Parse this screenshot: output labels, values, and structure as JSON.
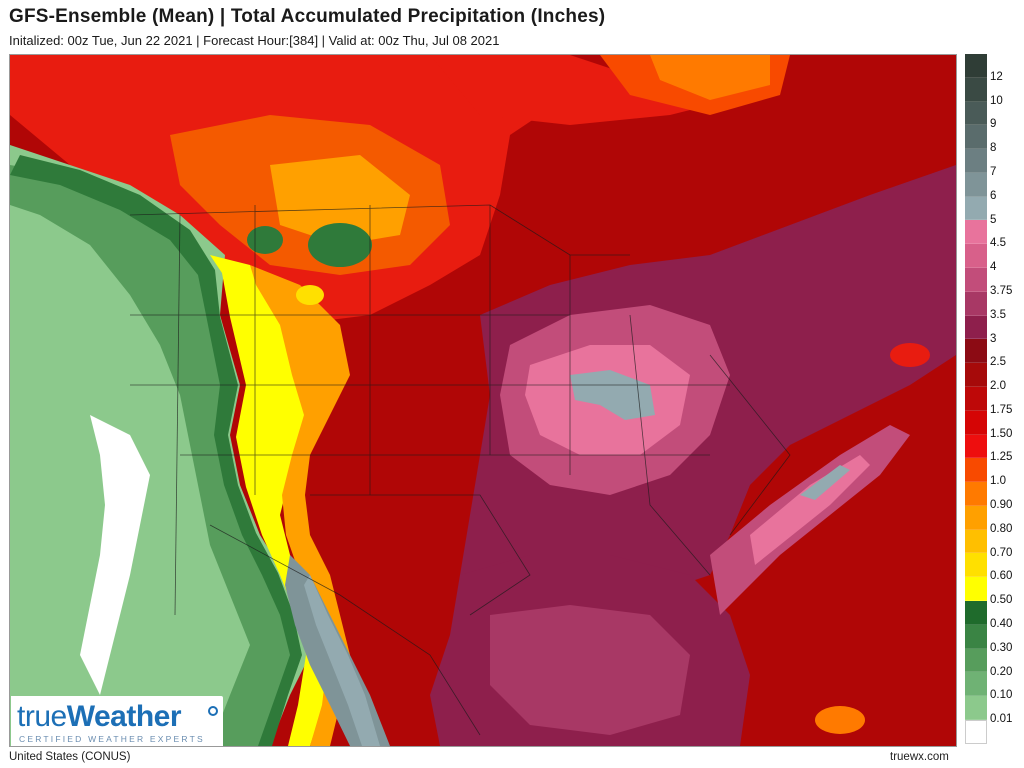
{
  "header": {
    "title": "GFS-Ensemble (Mean) | Total Accumulated Precipitation (Inches)",
    "subtitle": "Initalized: 00z Tue, Jun 22 2021  |  Forecast Hour:[384]  |  Valid at: 00z Thu, Jul 08 2021"
  },
  "logo": {
    "brand_light": "true",
    "brand_bold": "Weather",
    "tagline": "CERTIFIED WEATHER EXPERTS"
  },
  "legend": {
    "levels": [
      {
        "label": "12",
        "color": "#2f3d36"
      },
      {
        "label": "10",
        "color": "#3a4a44"
      },
      {
        "label": "9",
        "color": "#4a5b58"
      },
      {
        "label": "8",
        "color": "#5a6c6c"
      },
      {
        "label": "7",
        "color": "#6c7f82"
      },
      {
        "label": "6",
        "color": "#7f9498"
      },
      {
        "label": "5",
        "color": "#93aab0"
      },
      {
        "label": "4.5",
        "color": "#e8739c"
      },
      {
        "label": "4",
        "color": "#d8608a"
      },
      {
        "label": "3.75",
        "color": "#c24d7a"
      },
      {
        "label": "3.5",
        "color": "#a83865"
      },
      {
        "label": "3",
        "color": "#8e1f4c"
      },
      {
        "label": "2.5",
        "color": "#8c0b14"
      },
      {
        "label": "2.0",
        "color": "#a60a0a"
      },
      {
        "label": "1.75",
        "color": "#be0808"
      },
      {
        "label": "1.50",
        "color": "#d50505"
      },
      {
        "label": "1.25",
        "color": "#ee0e0e"
      },
      {
        "label": "1.0",
        "color": "#f84a00"
      },
      {
        "label": "0.90",
        "color": "#ff7a00"
      },
      {
        "label": "0.80",
        "color": "#ffa000"
      },
      {
        "label": "0.70",
        "color": "#ffbf00"
      },
      {
        "label": "0.60",
        "color": "#ffe000"
      },
      {
        "label": "0.50",
        "color": "#ffff00"
      },
      {
        "label": "0.40",
        "color": "#1f6b2c"
      },
      {
        "label": "0.30",
        "color": "#3a8444"
      },
      {
        "label": "0.20",
        "color": "#579d5c"
      },
      {
        "label": "0.10",
        "color": "#6fb274"
      },
      {
        "label": "0.01",
        "color": "#8cc98c"
      },
      {
        "label": "",
        "color": "#ffffff"
      }
    ]
  },
  "footer": {
    "region": "United States (CONUS)",
    "site": "truewx.com"
  }
}
